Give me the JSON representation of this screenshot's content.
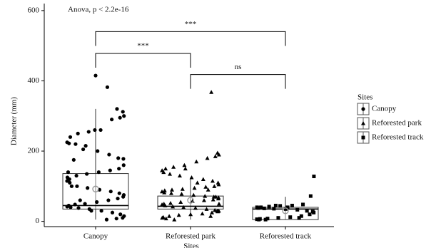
{
  "chart_data": {
    "type": "box",
    "annotation": "Anova, p < 2.2e-16",
    "xlabel": "Sites",
    "ylabel": "Diameter (mm)",
    "legend_title": "Sites",
    "categories": [
      "Canopy",
      "Reforested park",
      "Reforested track"
    ],
    "shapes": [
      "circle",
      "triangle",
      "square"
    ],
    "color": "#000000",
    "ylim": [
      -15,
      620
    ],
    "yticks": [
      0,
      200,
      400,
      600
    ],
    "boxes": [
      {
        "whisker_low": 5,
        "q1": 35,
        "median": 45,
        "q3": 136,
        "whisker_high": 320,
        "mean": 92
      },
      {
        "whisker_low": 5,
        "q1": 35,
        "median": 43,
        "q3": 72,
        "whisker_high": 125,
        "mean": 60
      },
      {
        "whisker_low": 5,
        "q1": 5,
        "median": 35,
        "q3": 40,
        "whisker_high": 70,
        "mean": 30
      }
    ],
    "points": [
      [
        415,
        382,
        320,
        312,
        300,
        295,
        290,
        260,
        255,
        250,
        240,
        225,
        222,
        220,
        215,
        200,
        190,
        180,
        178,
        160,
        150,
        145,
        140,
        135,
        130,
        120,
        115,
        110,
        100,
        95,
        90,
        85,
        80,
        75,
        70,
        65,
        60,
        55,
        50,
        48,
        45,
        42,
        40,
        38,
        35,
        30,
        25,
        20,
        15,
        10,
        8,
        5,
        260,
        205,
        175,
        140,
        125,
        100,
        60,
        30
      ],
      [
        368,
        195,
        190,
        185,
        180,
        170,
        160,
        155,
        150,
        145,
        140,
        135,
        130,
        125,
        120,
        115,
        110,
        105,
        100,
        98,
        95,
        92,
        90,
        88,
        85,
        82,
        80,
        78,
        75,
        72,
        70,
        68,
        65,
        62,
        60,
        58,
        55,
        52,
        50,
        48,
        45,
        42,
        40,
        38,
        35,
        32,
        30,
        28,
        25,
        22,
        20,
        18,
        15,
        12,
        10,
        8,
        5,
        150,
        110,
        90,
        70,
        50,
        30,
        15
      ],
      [
        128,
        72,
        48,
        45,
        44,
        42,
        40,
        40,
        38,
        37,
        36,
        35,
        33,
        30,
        28,
        25,
        20,
        15,
        12,
        10,
        8,
        7,
        6,
        5,
        5,
        45,
        40,
        10
      ]
    ],
    "comparisons": [
      {
        "from": 0,
        "to": 2,
        "y": 540,
        "label": "***"
      },
      {
        "from": 0,
        "to": 1,
        "y": 478,
        "label": "***"
      },
      {
        "from": 1,
        "to": 2,
        "y": 418,
        "label": "ns"
      }
    ]
  }
}
